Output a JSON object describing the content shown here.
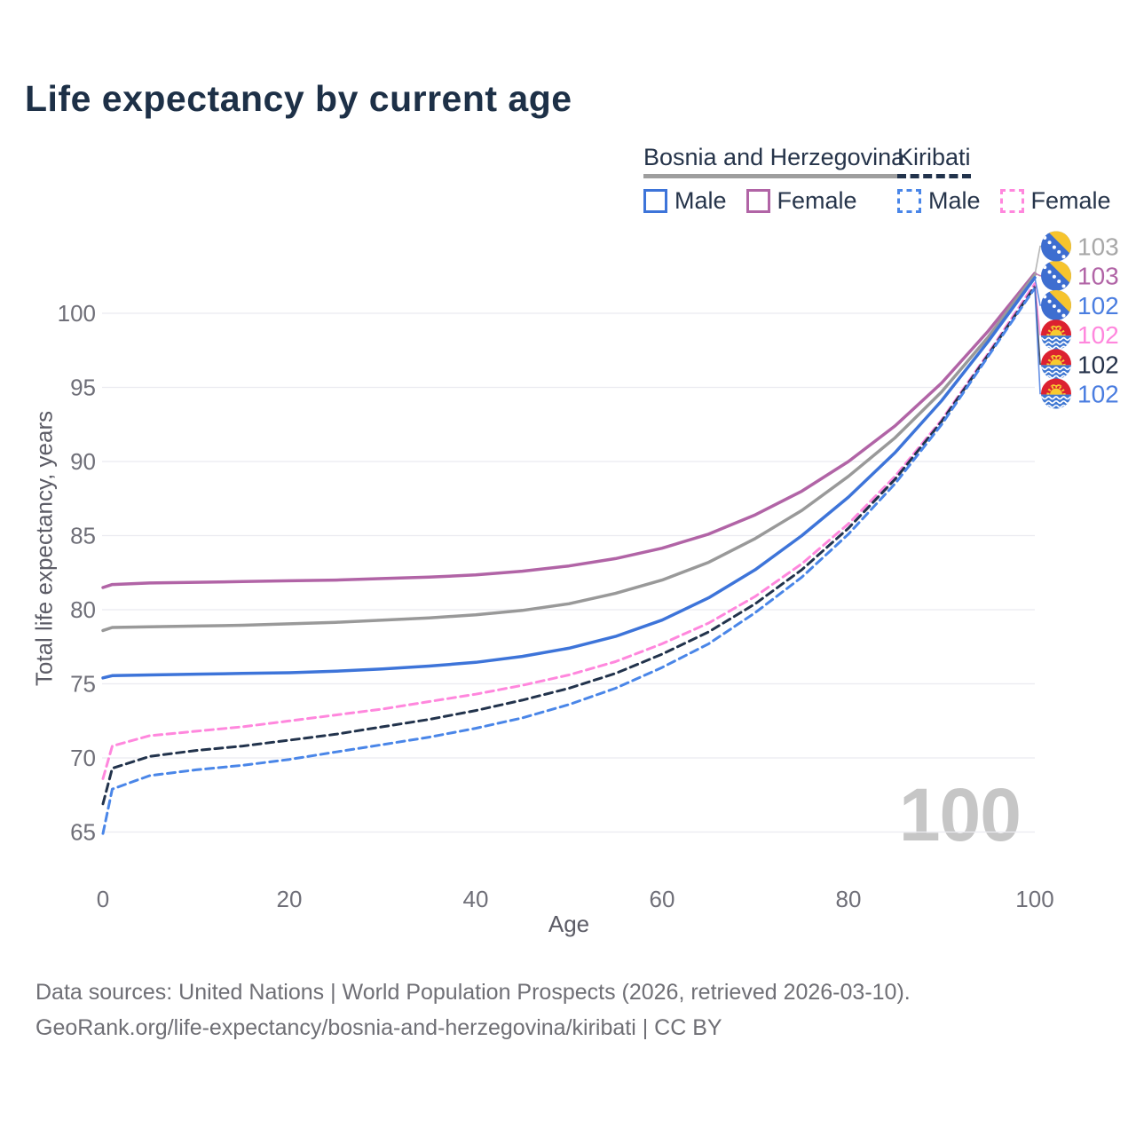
{
  "page": {
    "title": "Life expectancy by current age",
    "watermark": "100",
    "footer_line1": "Data sources: United Nations | World Population Prospects (2026, retrieved 2026-03-10).",
    "footer_line2": "GeoRank.org/life-expectancy/bosnia-and-herzegovina/kiribati | CC BY"
  },
  "legend": {
    "groups": [
      {
        "label": "Bosnia and Herzegovina",
        "underline_style": "solid",
        "underline_color": "#9e9e9e",
        "items": [
          {
            "label": "Male",
            "color": "#3d74d9",
            "dash": false
          },
          {
            "label": "Female",
            "color": "#b164a6",
            "dash": false
          }
        ]
      },
      {
        "label": "Kiribati",
        "underline_style": "dashed",
        "underline_color": "#22334c",
        "items": [
          {
            "label": "Male",
            "color": "#4a86e8",
            "dash": true
          },
          {
            "label": "Female",
            "color": "#ff87dd",
            "dash": true
          }
        ]
      }
    ]
  },
  "chart_data": {
    "type": "line",
    "title": "Life expectancy by current age",
    "xlabel": "Age",
    "ylabel": "Total life expectancy, years",
    "xlim": [
      0,
      100
    ],
    "ylim": [
      64,
      103.5
    ],
    "x_ticks": [
      0,
      20,
      40,
      60,
      80,
      100
    ],
    "y_ticks": [
      65,
      70,
      75,
      80,
      85,
      90,
      95,
      100
    ],
    "grid": "horizontal-only",
    "legend_position": "top-right",
    "watermark_value": "100",
    "x": [
      0,
      1,
      5,
      10,
      15,
      20,
      25,
      30,
      35,
      40,
      45,
      50,
      55,
      60,
      65,
      70,
      75,
      80,
      85,
      90,
      95,
      100
    ],
    "series": [
      {
        "name": "Bosnia and Herzegovina — Female",
        "country": "Bosnia and Herzegovina",
        "sex": "Female",
        "color": "#b164a6",
        "label_color": "#b164a6",
        "dash": false,
        "flag": "bih",
        "end_label": "103",
        "label_slot": 1,
        "values": [
          81.5,
          81.7,
          81.8,
          81.85,
          81.9,
          81.95,
          82.0,
          82.1,
          82.2,
          82.35,
          82.6,
          82.95,
          83.45,
          84.15,
          85.1,
          86.4,
          88.0,
          90.0,
          92.4,
          95.3,
          98.8,
          102.7
        ]
      },
      {
        "name": "Bosnia and Herzegovina — Total",
        "country": "Bosnia and Herzegovina",
        "sex": "Total",
        "color": "#999999",
        "label_color": "#a8a8a8",
        "dash": false,
        "flag": "bih",
        "end_label": "103",
        "label_slot": 0,
        "values": [
          78.6,
          78.8,
          78.85,
          78.9,
          78.95,
          79.05,
          79.15,
          79.3,
          79.45,
          79.65,
          79.95,
          80.4,
          81.1,
          82.0,
          83.2,
          84.8,
          86.7,
          89.0,
          91.6,
          94.7,
          98.4,
          102.6
        ]
      },
      {
        "name": "Bosnia and Herzegovina — Male",
        "country": "Bosnia and Herzegovina",
        "sex": "Male",
        "color": "#3d74d9",
        "label_color": "#4a7de0",
        "dash": false,
        "flag": "bih",
        "end_label": "102",
        "label_slot": 2,
        "values": [
          75.4,
          75.55,
          75.6,
          75.65,
          75.7,
          75.75,
          75.85,
          76.0,
          76.2,
          76.45,
          76.85,
          77.4,
          78.2,
          79.3,
          80.8,
          82.7,
          85.0,
          87.6,
          90.6,
          94.1,
          98.1,
          102.4
        ]
      },
      {
        "name": "Kiribati — Female",
        "country": "Kiribati",
        "sex": "Female",
        "color": "#ff87dd",
        "label_color": "#ff87dd",
        "dash": true,
        "flag": "kir",
        "end_label": "102",
        "label_slot": 3,
        "values": [
          68.6,
          70.8,
          71.5,
          71.8,
          72.1,
          72.5,
          72.9,
          73.3,
          73.8,
          74.3,
          74.9,
          75.6,
          76.5,
          77.7,
          79.1,
          80.9,
          83.1,
          85.8,
          89.0,
          92.8,
          97.3,
          102.0
        ]
      },
      {
        "name": "Kiribati — Total",
        "country": "Kiribati",
        "sex": "Total",
        "color": "#22334c",
        "label_color": "#25324a",
        "dash": true,
        "flag": "kir",
        "end_label": "102",
        "label_slot": 4,
        "values": [
          66.9,
          69.3,
          70.1,
          70.5,
          70.8,
          71.2,
          71.6,
          72.1,
          72.6,
          73.2,
          73.9,
          74.7,
          75.7,
          77.0,
          78.5,
          80.4,
          82.7,
          85.5,
          88.8,
          92.7,
          97.2,
          101.8
        ]
      },
      {
        "name": "Kiribati — Male",
        "country": "Kiribati",
        "sex": "Male",
        "color": "#4a86e8",
        "label_color": "#4a7de0",
        "dash": true,
        "flag": "kir",
        "end_label": "102",
        "label_slot": 5,
        "values": [
          64.9,
          67.9,
          68.8,
          69.2,
          69.5,
          69.9,
          70.4,
          70.9,
          71.4,
          72.0,
          72.7,
          73.6,
          74.7,
          76.1,
          77.7,
          79.8,
          82.2,
          85.1,
          88.5,
          92.5,
          97.1,
          101.7
        ]
      }
    ]
  }
}
